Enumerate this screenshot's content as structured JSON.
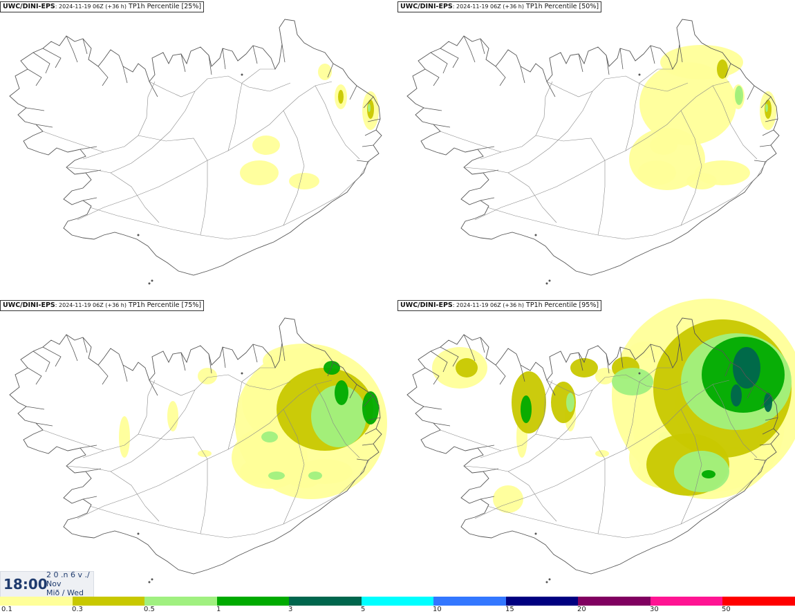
{
  "panels": [
    {
      "source": "UWC/DINI-EPS",
      "run": ": 2024-11-19 06Z (+36 h)",
      "param": " TP1h Percentile [25%]",
      "intensity": 0.25
    },
    {
      "source": "UWC/DINI-EPS",
      "run": ": 2024-11-19 06Z (+36 h)",
      "param": " TP1h Percentile [50%]",
      "intensity": 0.5
    },
    {
      "source": "UWC/DINI-EPS",
      "run": ": 2024-11-19 06Z (+36 h)",
      "param": " TP1h Percentile [75%]",
      "intensity": 0.75
    },
    {
      "source": "UWC/DINI-EPS",
      "run": ": 2024-11-19 06Z (+36 h)",
      "param": " TP1h Percentile [95%]",
      "intensity": 0.95
    }
  ],
  "valid_time": {
    "clock": "18:00",
    "line1": "2 0 .n 6 v ./",
    "line2": "Nov",
    "line3": "Mið / Wed"
  },
  "legend": {
    "colors": [
      "#ffff99",
      "#c8c800",
      "#a0f080",
      "#00aa00",
      "#00664d",
      "#00ffff",
      "#3377ff",
      "#000080",
      "#800060",
      "#ff1493",
      "#ff0000"
    ],
    "labels": [
      "0.1",
      "0.3",
      "0.5",
      "1",
      "3",
      "5",
      "10",
      "15",
      "20",
      "30",
      "50"
    ]
  }
}
